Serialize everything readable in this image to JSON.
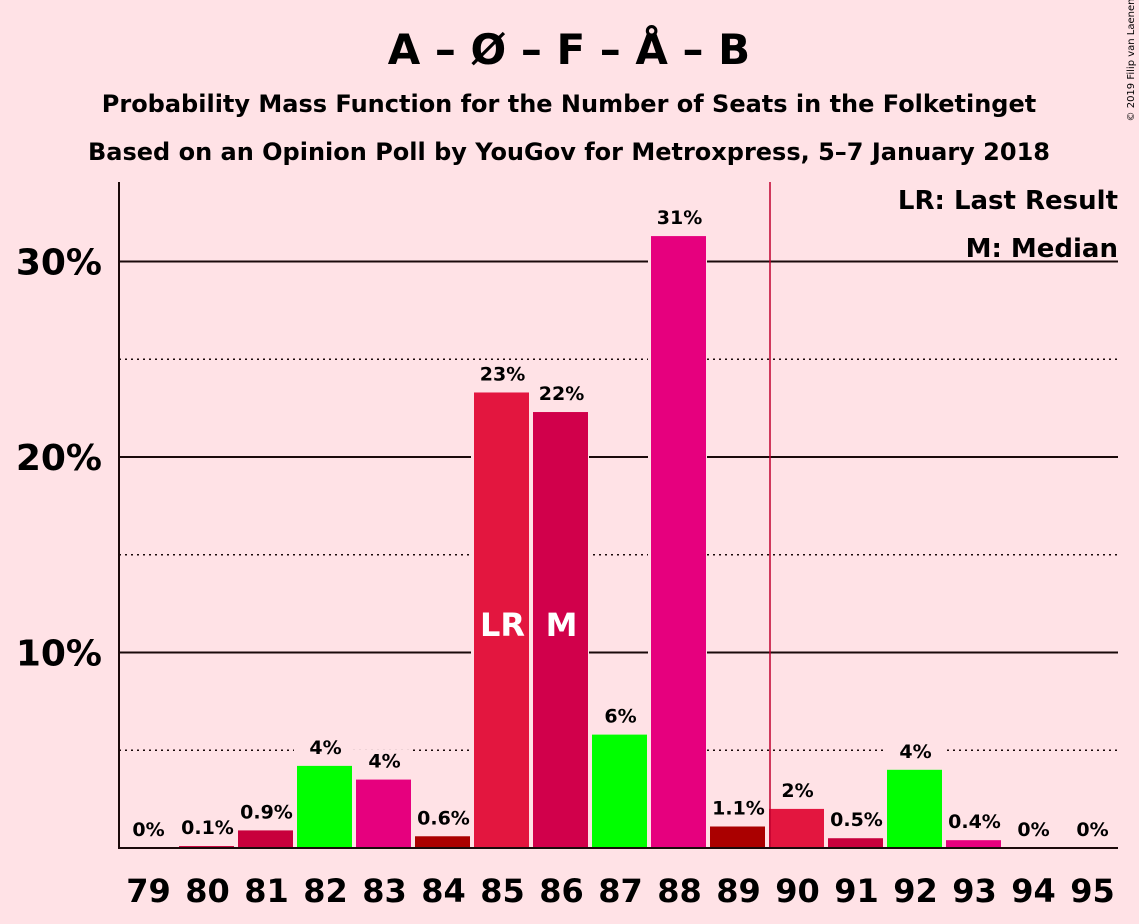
{
  "title": "A – Ø – F – Å – B",
  "subtitle1": "Probability Mass Function for the Number of Seats in the Folketinget",
  "subtitle2": "Based on an Opinion Poll by YouGov for Metroxpress, 5–7 January 2018",
  "copyright": "© 2019 Filip van Laenen",
  "legend": {
    "lr": "LR: Last Result",
    "m": "M: Median"
  },
  "chart_data": {
    "type": "bar",
    "categories": [
      "79",
      "80",
      "81",
      "82",
      "83",
      "84",
      "85",
      "86",
      "87",
      "88",
      "89",
      "90",
      "91",
      "92",
      "93",
      "94",
      "95"
    ],
    "values": [
      0,
      0.1,
      0.9,
      4.2,
      3.5,
      0.6,
      23.3,
      22.3,
      5.8,
      31.3,
      1.1,
      2.0,
      0.5,
      4.0,
      0.4,
      0,
      0
    ],
    "labels": [
      "0%",
      "0.1%",
      "0.9%",
      "4%",
      "4%",
      "0.6%",
      "23%",
      "22%",
      "6%",
      "31%",
      "1.1%",
      "2%",
      "0.5%",
      "4%",
      "0.4%",
      "0%",
      "0%"
    ],
    "colors": [
      "#c8003c",
      "#c8003c",
      "#c8003c",
      "#00ff00",
      "#e6007e",
      "#aa0000",
      "#e3163f",
      "#d1004b",
      "#00ff00",
      "#e6007e",
      "#aa0000",
      "#e3163f",
      "#c8003c",
      "#00ff00",
      "#e6007e",
      "#e6007e",
      "#e6007e"
    ],
    "in_bar_labels": {
      "85": "LR",
      "86": "M"
    },
    "yticks": [
      "10%",
      "20%",
      "30%"
    ],
    "ytick_values": [
      10,
      20,
      30
    ],
    "ylim": [
      0,
      34
    ],
    "majority_line_after": "89",
    "majority_line_color": "#c0002f",
    "grid": true,
    "legend_position": "top-right"
  }
}
